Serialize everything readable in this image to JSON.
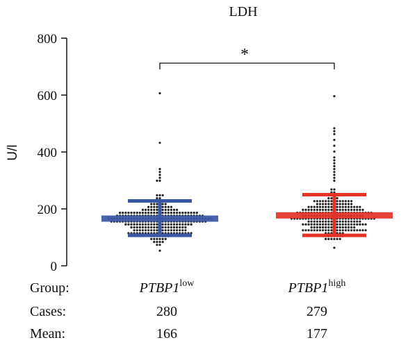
{
  "chart_data": {
    "type": "scatter",
    "title": "LDH",
    "ylabel": "U/l",
    "ylim": [
      0,
      800
    ],
    "yticks": [
      0,
      200,
      400,
      600,
      800
    ],
    "significance": "*",
    "groups": [
      {
        "name": "PTBP1",
        "superscript": "low",
        "color": "#3a57a7",
        "cases": "280",
        "mean_label": "166",
        "n": 280,
        "mean": 166,
        "sd_low": 107,
        "sd_high": 228,
        "min": 55,
        "max": 605,
        "outliers": [
          605,
          435,
          340,
          330,
          320,
          310,
          300,
          295
        ]
      },
      {
        "name": "PTBP1",
        "superscript": "high",
        "color": "#e53227",
        "cases": "279",
        "mean_label": "177",
        "n": 279,
        "mean": 177,
        "sd_low": 107,
        "sd_high": 250,
        "min": 65,
        "max": 600,
        "outliers": [
          600,
          485,
          475,
          460,
          440,
          420,
          400,
          385,
          375,
          360,
          350,
          340,
          330,
          320,
          310,
          300
        ]
      }
    ]
  },
  "table": {
    "group_label": "Group:",
    "cases_label": "Cases:",
    "mean_label": "Mean:"
  }
}
